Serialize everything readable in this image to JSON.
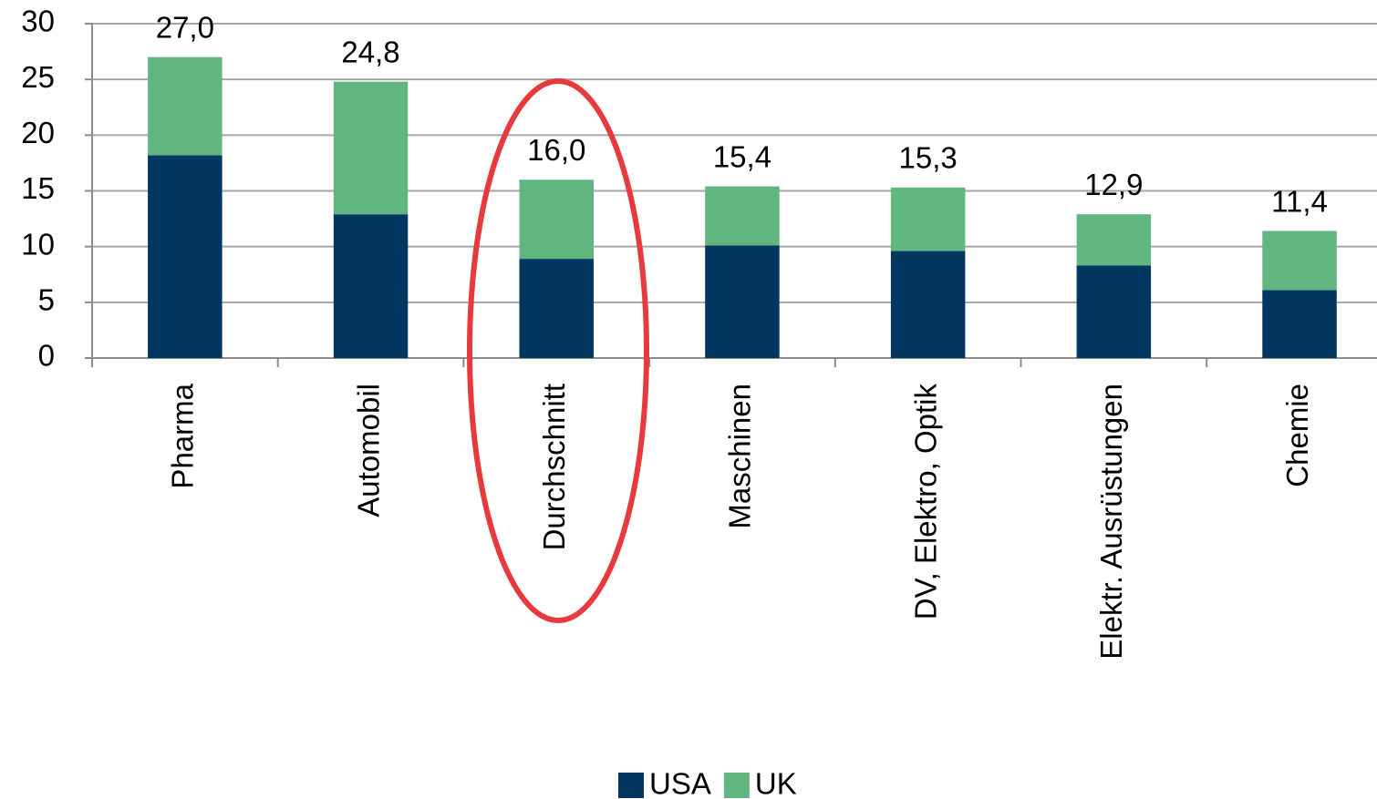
{
  "chart_data": {
    "type": "stacked_bar",
    "categories": [
      "Pharma",
      "Automobil",
      "Durchschnitt",
      "Maschinen",
      "DV, Elektro, Optik",
      "Elektr. Ausrüstungen",
      "Chemie"
    ],
    "series": [
      {
        "name": "USA",
        "color": "#003660",
        "values": [
          18.2,
          12.9,
          8.9,
          10.1,
          9.6,
          8.3,
          6.1
        ]
      },
      {
        "name": "UK",
        "color": "#61b57f",
        "values": [
          8.8,
          11.9,
          7.1,
          5.3,
          5.7,
          4.6,
          5.3
        ]
      }
    ],
    "totals": {
      "values": [
        27.0,
        24.8,
        16.0,
        15.4,
        15.3,
        12.9,
        11.4
      ],
      "value_labels": [
        "27,0",
        "24,8",
        "16,0",
        "15,4",
        "15,3",
        "12,9",
        "11,4"
      ]
    },
    "ylim": [
      0,
      30
    ],
    "yticks": [
      0,
      5,
      10,
      15,
      20,
      25,
      30
    ],
    "grid": true,
    "legend": "bottom"
  }
}
